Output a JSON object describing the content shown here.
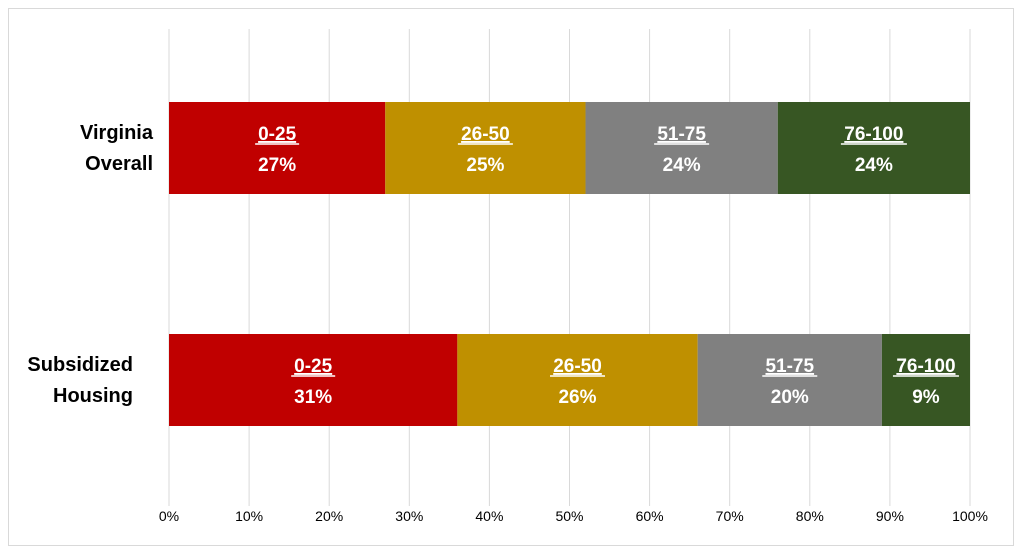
{
  "chart_data": {
    "type": "bar",
    "orientation": "horizontal",
    "stacked": true,
    "categories": [
      "Virginia Overall",
      "Subsidized Housing"
    ],
    "category_lines": [
      [
        "Virginia",
        "Overall"
      ],
      [
        "Subsidized",
        "Housing"
      ]
    ],
    "series": [
      {
        "label": "0-25",
        "color": "#c00000",
        "values": [
          27,
          36
        ],
        "display": [
          "27%",
          "31%"
        ]
      },
      {
        "label": "26-50",
        "color": "#bf9000",
        "values": [
          25,
          30
        ],
        "display": [
          "25%",
          "26%"
        ]
      },
      {
        "label": "51-75",
        "color": "#808080",
        "values": [
          24,
          23
        ],
        "display": [
          "24%",
          "20%"
        ]
      },
      {
        "label": "76-100",
        "color": "#375623",
        "values": [
          24,
          11
        ],
        "display": [
          "24%",
          "9%"
        ]
      }
    ],
    "xlim": [
      0,
      100
    ],
    "xticks": [
      "0%",
      "10%",
      "20%",
      "30%",
      "40%",
      "50%",
      "60%",
      "70%",
      "80%",
      "90%",
      "100%"
    ],
    "grid": true,
    "gridColor": "#d9d9d9",
    "legend": "none"
  }
}
